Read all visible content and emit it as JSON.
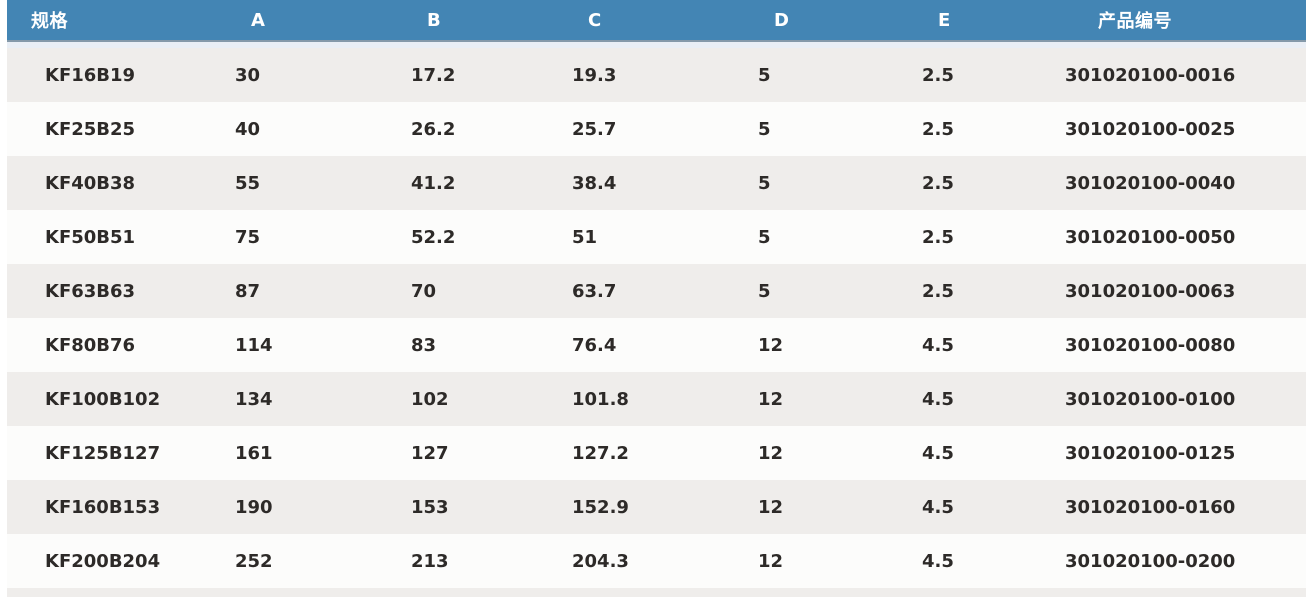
{
  "table": {
    "columns": [
      "规格",
      "A",
      "B",
      "C",
      "D",
      "E",
      "产品编号"
    ],
    "column_keys": [
      "spec",
      "a",
      "b",
      "c",
      "d",
      "e",
      "product-code"
    ],
    "rows": [
      [
        "KF16B19",
        "30",
        "17.2",
        "19.3",
        "5",
        "2.5",
        "301020100-0016"
      ],
      [
        "KF25B25",
        "40",
        "26.2",
        "25.7",
        "5",
        "2.5",
        "301020100-0025"
      ],
      [
        "KF40B38",
        "55",
        "41.2",
        "38.4",
        "5",
        "2.5",
        "301020100-0040"
      ],
      [
        "KF50B51",
        "75",
        "52.2",
        "51",
        "5",
        "2.5",
        "301020100-0050"
      ],
      [
        "KF63B63",
        "87",
        "70",
        "63.7",
        "5",
        "2.5",
        "301020100-0063"
      ],
      [
        "KF80B76",
        "114",
        "83",
        "76.4",
        "12",
        "4.5",
        "301020100-0080"
      ],
      [
        "KF100B102",
        "134",
        "102",
        "101.8",
        "12",
        "4.5",
        "301020100-0100"
      ],
      [
        "KF125B127",
        "161",
        "127",
        "127.2",
        "12",
        "4.5",
        "301020100-0125"
      ],
      [
        "KF160B153",
        "190",
        "153",
        "152.9",
        "12",
        "4.5",
        "301020100-0160"
      ],
      [
        "KF200B204",
        "252",
        "213",
        "204.3",
        "12",
        "4.5",
        "301020100-0200"
      ]
    ],
    "colors": {
      "header_bg": "#4385b4",
      "header_text": "#ffffff",
      "header_border": "#8599a9",
      "gap_strip": "#e9eef5",
      "row_odd_bg": "#efedeb",
      "row_even_bg": "#fcfcfb",
      "text": "#2d2a28"
    }
  }
}
